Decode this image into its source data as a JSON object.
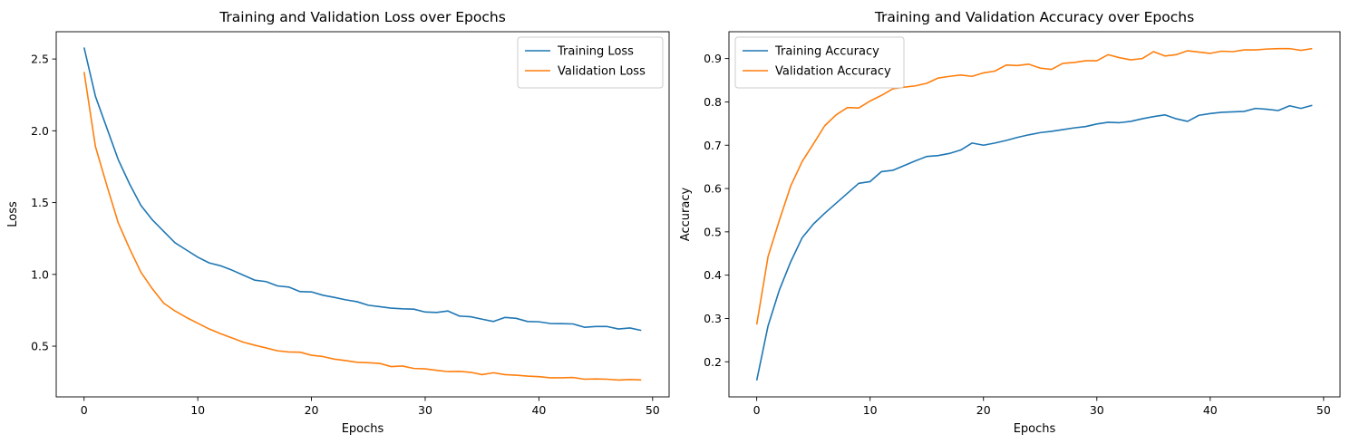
{
  "chart_data": [
    {
      "type": "line",
      "title": "Training and Validation Loss over Epochs",
      "xlabel": "Epochs",
      "ylabel": "Loss",
      "xlim": [
        -2.45,
        51.45
      ],
      "ylim": [
        0.147,
        2.69
      ],
      "xticks": [
        0,
        10,
        20,
        30,
        40,
        50
      ],
      "yticks": [
        0.5,
        1.0,
        1.5,
        2.0,
        2.5
      ],
      "ytick_labels": [
        "0.5",
        "1.0",
        "1.5",
        "2.0",
        "2.5"
      ],
      "grid": false,
      "legend_position": "top-right",
      "series": [
        {
          "name": "Training Loss",
          "color": "#1f77b4",
          "values": [
            2.58,
            2.24,
            2.02,
            1.8,
            1.63,
            1.48,
            1.38,
            1.3,
            1.22,
            1.17,
            1.12,
            1.08,
            1.06,
            1.03,
            0.995,
            0.96,
            0.95,
            0.92,
            0.912,
            0.88,
            0.878,
            0.855,
            0.84,
            0.823,
            0.81,
            0.785,
            0.775,
            0.765,
            0.76,
            0.758,
            0.738,
            0.735,
            0.745,
            0.71,
            0.705,
            0.688,
            0.672,
            0.7,
            0.694,
            0.672,
            0.67,
            0.658,
            0.657,
            0.655,
            0.632,
            0.637,
            0.637,
            0.62,
            0.627,
            0.61
          ]
        },
        {
          "name": "Validation Loss",
          "color": "#ff7f0e",
          "values": [
            2.41,
            1.89,
            1.62,
            1.36,
            1.18,
            1.015,
            0.9,
            0.8,
            0.745,
            0.7,
            0.66,
            0.62,
            0.587,
            0.558,
            0.528,
            0.507,
            0.488,
            0.468,
            0.46,
            0.458,
            0.437,
            0.428,
            0.41,
            0.4,
            0.388,
            0.385,
            0.38,
            0.358,
            0.362,
            0.345,
            0.342,
            0.332,
            0.323,
            0.325,
            0.318,
            0.302,
            0.315,
            0.302,
            0.298,
            0.292,
            0.288,
            0.28,
            0.28,
            0.282,
            0.27,
            0.272,
            0.27,
            0.264,
            0.268,
            0.265
          ]
        }
      ]
    },
    {
      "type": "line",
      "title": "Training and Validation Accuracy over Epochs",
      "xlabel": "Epochs",
      "ylabel": "Accuracy",
      "xlim": [
        -2.45,
        51.45
      ],
      "ylim": [
        0.119,
        0.962
      ],
      "xticks": [
        0,
        10,
        20,
        30,
        40,
        50
      ],
      "yticks": [
        0.2,
        0.3,
        0.4,
        0.5,
        0.6,
        0.7,
        0.8,
        0.9
      ],
      "ytick_labels": [
        "0.2",
        "0.3",
        "0.4",
        "0.5",
        "0.6",
        "0.7",
        "0.8",
        "0.9"
      ],
      "grid": false,
      "legend_position": "top-left",
      "series": [
        {
          "name": "Training Accuracy",
          "color": "#1f77b4",
          "values": [
            0.157,
            0.283,
            0.366,
            0.431,
            0.486,
            0.518,
            0.543,
            0.566,
            0.589,
            0.612,
            0.616,
            0.639,
            0.642,
            0.653,
            0.664,
            0.674,
            0.676,
            0.681,
            0.689,
            0.705,
            0.7,
            0.705,
            0.711,
            0.718,
            0.724,
            0.729,
            0.732,
            0.736,
            0.74,
            0.743,
            0.749,
            0.753,
            0.752,
            0.755,
            0.761,
            0.766,
            0.77,
            0.761,
            0.755,
            0.769,
            0.773,
            0.776,
            0.777,
            0.778,
            0.785,
            0.783,
            0.78,
            0.791,
            0.785,
            0.792
          ]
        },
        {
          "name": "Validation Accuracy",
          "color": "#ff7f0e",
          "values": [
            0.286,
            0.443,
            0.527,
            0.606,
            0.662,
            0.703,
            0.745,
            0.77,
            0.787,
            0.786,
            0.802,
            0.815,
            0.83,
            0.834,
            0.837,
            0.843,
            0.855,
            0.859,
            0.862,
            0.859,
            0.867,
            0.871,
            0.885,
            0.884,
            0.887,
            0.878,
            0.875,
            0.889,
            0.891,
            0.895,
            0.895,
            0.909,
            0.902,
            0.897,
            0.9,
            0.916,
            0.906,
            0.909,
            0.918,
            0.915,
            0.912,
            0.917,
            0.916,
            0.92,
            0.92,
            0.922,
            0.923,
            0.923,
            0.919,
            0.923
          ]
        }
      ]
    }
  ]
}
